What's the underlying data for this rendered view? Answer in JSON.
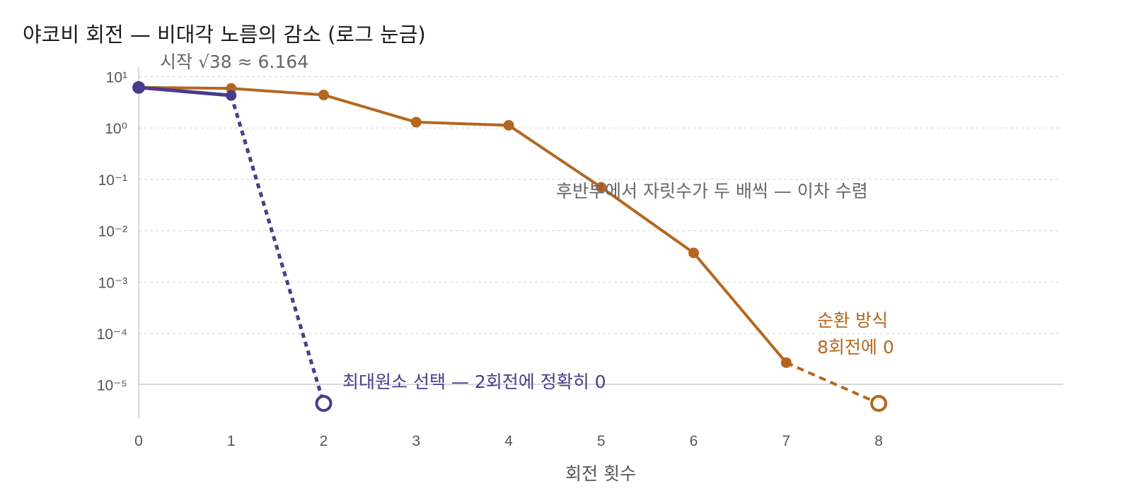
{
  "chart_data": {
    "type": "line",
    "title": "야코비 회전 — 비대각 노름의 감소 (로그 눈금)",
    "xlabel": "회전 횟수",
    "ylabel": "",
    "x_ticks": [
      "0",
      "1",
      "2",
      "3",
      "4",
      "5",
      "6",
      "7",
      "8"
    ],
    "xlim": [
      0,
      10
    ],
    "y_scale": "log",
    "ylim": [
      1.5e-06,
      15
    ],
    "y_ticks": [
      {
        "value": 10,
        "label": "10¹"
      },
      {
        "value": 1,
        "label": "10⁰"
      },
      {
        "value": 0.1,
        "label": "10⁻¹"
      },
      {
        "value": 0.01,
        "label": "10⁻²"
      },
      {
        "value": 0.001,
        "label": "10⁻³"
      },
      {
        "value": 0.0001,
        "label": "10⁻⁴"
      },
      {
        "value": 1e-05,
        "label": "10⁻⁵"
      }
    ],
    "grid": true,
    "series": [
      {
        "color": "#b5661e",
        "x": [
          0,
          1,
          2,
          3,
          4,
          5,
          6,
          7
        ],
        "y": [
          6.164,
          5.9,
          4.4,
          1.3,
          1.13,
          0.07,
          0.0037,
          2.7e-05
        ],
        "terminal": {
          "x": 8,
          "y": 0,
          "style": "dashed",
          "marker": "open"
        }
      },
      {
        "color": "#4a3c8c",
        "x": [
          0,
          1
        ],
        "y": [
          6.164,
          4.3
        ],
        "terminal": {
          "x": 2,
          "y": 0,
          "style": "dotted",
          "marker": "open"
        }
      }
    ],
    "annotations": {
      "start": "시작 √38 ≈ 6.164",
      "quadratic": "후반부에서 자릿수가 두 배씩 — 이차 수렴",
      "cyclic_line1": "순환 방식",
      "cyclic_line2": "8회전에 0",
      "max_elem": "최대원소 선택 — 2회전에 정확히 0"
    },
    "colors": {
      "cyclic": "#b5661e",
      "max_elem": "#4a3c8c",
      "start_anno": "#666666",
      "quadratic_anno": "#666666"
    }
  }
}
